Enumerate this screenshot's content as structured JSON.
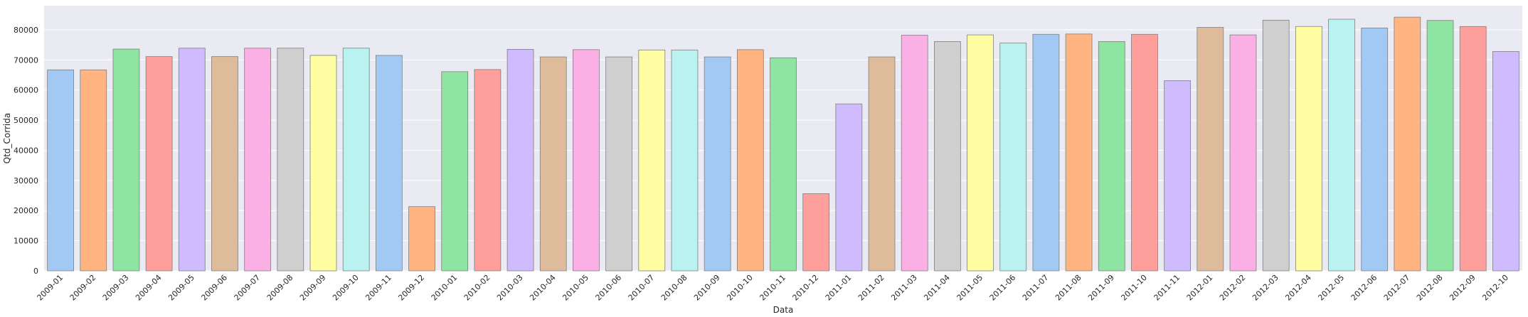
{
  "chart_data": {
    "type": "bar",
    "xlabel": "Data",
    "ylabel": "Qtd_Corrida",
    "ylim": [
      0,
      88000
    ],
    "yticks": [
      0,
      10000,
      20000,
      30000,
      40000,
      50000,
      60000,
      70000,
      80000
    ],
    "grid": true,
    "background": "#eaeaf2",
    "bar_edge_color": "#7f7f7f",
    "palette": [
      "#a1c9f4",
      "#ffb482",
      "#8de5a1",
      "#ff9f9b",
      "#d0bbff",
      "#debb9b",
      "#fab0e4",
      "#cfcfcf",
      "#fffea3",
      "#b9f2f0"
    ],
    "categories": [
      "2009-01",
      "2009-02",
      "2009-03",
      "2009-04",
      "2009-05",
      "2009-06",
      "2009-07",
      "2009-08",
      "2009-09",
      "2009-10",
      "2009-11",
      "2009-12",
      "2010-01",
      "2010-02",
      "2010-03",
      "2010-04",
      "2010-05",
      "2010-06",
      "2010-07",
      "2010-08",
      "2010-09",
      "2010-10",
      "2010-11",
      "2010-12",
      "2011-01",
      "2011-02",
      "2011-03",
      "2011-04",
      "2011-05",
      "2011-06",
      "2011-07",
      "2011-08",
      "2011-09",
      "2011-10",
      "2011-11",
      "2012-01",
      "2012-02",
      "2012-03",
      "2012-04",
      "2012-05",
      "2012-06",
      "2012-07",
      "2012-08",
      "2012-09",
      "2012-10"
    ],
    "values": [
      66700,
      66700,
      73600,
      71100,
      73900,
      71100,
      73900,
      73900,
      71500,
      73900,
      71500,
      21300,
      66100,
      66800,
      73500,
      71000,
      73400,
      71000,
      73300,
      73300,
      71000,
      73400,
      70700,
      25600,
      55400,
      71000,
      78200,
      76100,
      78300,
      75600,
      78500,
      78600,
      76100,
      78500,
      63100,
      80800,
      78300,
      83200,
      81100,
      83500,
      80600,
      84200,
      83100,
      81100,
      72800
    ]
  }
}
